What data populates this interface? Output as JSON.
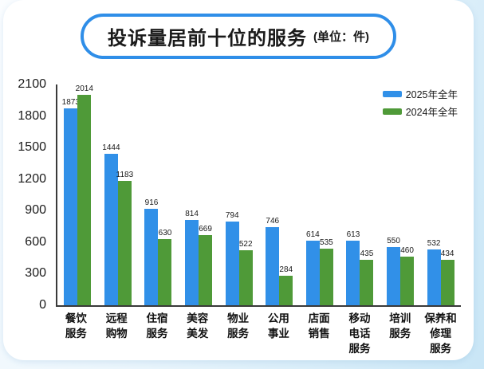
{
  "header": {
    "title": "投诉量居前十位的服务",
    "unit": "(单位：件)",
    "border_color": "#2f8ee8"
  },
  "legend": {
    "items": [
      {
        "label": "2025年全年",
        "color": "#3190e8"
      },
      {
        "label": "2024年全年",
        "color": "#4f9a38"
      }
    ]
  },
  "chart_data": {
    "type": "bar",
    "title": "投诉量居前十位的服务",
    "unit_label": "单位：件",
    "categories": [
      "餐饮服务",
      "远程购物",
      "住宿服务",
      "美容美发",
      "物业服务",
      "公用事业",
      "店面销售",
      "移动电话服务",
      "培训服务",
      "保养和修理服务"
    ],
    "categories_display": [
      [
        "餐饮",
        "服务"
      ],
      [
        "远程",
        "购物"
      ],
      [
        "住宿",
        "服务"
      ],
      [
        "美容",
        "美发"
      ],
      [
        "物业",
        "服务"
      ],
      [
        "公用",
        "事业"
      ],
      [
        "店面",
        "销售"
      ],
      [
        "移动",
        "电话",
        "服务"
      ],
      [
        "培训",
        "服务"
      ],
      [
        "保养和",
        "修理",
        "服务"
      ]
    ],
    "series": [
      {
        "name": "2025年全年",
        "color": "#3190e8",
        "values": [
          1873,
          1444,
          916,
          814,
          794,
          746,
          614,
          613,
          550,
          532
        ]
      },
      {
        "name": "2024年全年",
        "color": "#4f9a38",
        "values": [
          2014,
          1183,
          630,
          669,
          522,
          284,
          535,
          435,
          460,
          434
        ]
      }
    ],
    "xlabel": "",
    "ylabel": "",
    "ylim": [
      0,
      2100
    ],
    "yticks": [
      0,
      300,
      600,
      900,
      1200,
      1500,
      1800,
      2100
    ],
    "grid": false,
    "legend_position": "top-right"
  }
}
